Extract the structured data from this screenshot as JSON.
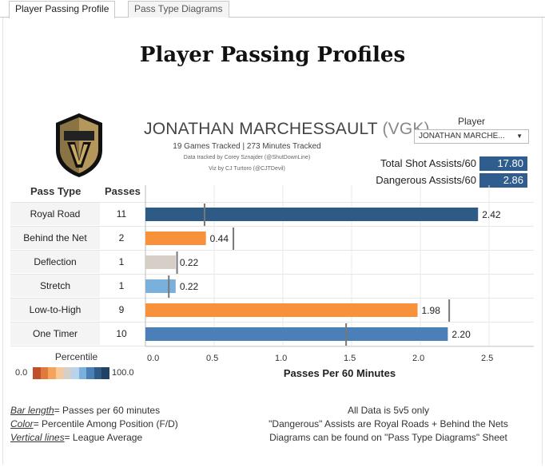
{
  "tabs": [
    {
      "label": "Player Passing Profile",
      "active": true
    },
    {
      "label": "Pass Type Diagrams",
      "active": false
    }
  ],
  "title": "Player Passing Profiles",
  "player": {
    "name": "JONATHAN MARCHESSAULT",
    "team": "(VGK)",
    "games_minutes": "19 Games Tracked | 273 Minutes Tracked",
    "data_credit": "Data tracked by Corey Sznajder (@ShutDownLine)",
    "viz_credit": "Viz by CJ Turtoro (@CJTDevil)"
  },
  "player_filter": {
    "label": "Player",
    "value": "JONATHAN MARCHE..."
  },
  "summary": {
    "total_label": "Total Shot Assists/60",
    "total_value": "17.80",
    "dangerous_label": "Dangerous Assists/60",
    "dangerous_value": "2.86"
  },
  "table_headers": {
    "pass_type": "Pass Type",
    "passes": "Passes"
  },
  "colors": {
    "dark_blue": "#2e5a86",
    "mid_blue": "#4a7fb8",
    "light_blue": "#7ab0dc",
    "orange": "#f7923a",
    "tan": "#d6cfc7",
    "avg_line": "#777777"
  },
  "chart_data": {
    "type": "bar",
    "orientation": "horizontal",
    "categories": [
      "Royal Road",
      "Behind the Net",
      "Deflection",
      "Stretch",
      "Low-to-High",
      "One Timer"
    ],
    "passes": [
      11,
      2,
      1,
      1,
      9,
      10
    ],
    "values": [
      2.42,
      0.44,
      0.22,
      0.22,
      1.98,
      2.2
    ],
    "value_labels": [
      "2.42",
      "0.44",
      "0.22",
      "0.22",
      "1.98",
      "2.20"
    ],
    "league_average": [
      0.43,
      0.64,
      0.23,
      0.17,
      2.21,
      1.46
    ],
    "bar_colors": [
      "#2e5a86",
      "#f7923a",
      "#d6cfc7",
      "#7ab0dc",
      "#f7923a",
      "#4a7fb8"
    ],
    "xlabel": "Passes Per 60 Minutes",
    "xlim": [
      0,
      2.8
    ],
    "xticks": [
      0.0,
      0.5,
      1.0,
      1.5,
      2.0,
      2.5
    ],
    "xtick_labels": [
      "0.0",
      "0.5",
      "1.0",
      "1.5",
      "2.0",
      "2.5"
    ],
    "grid": true
  },
  "percentile_legend": {
    "label": "Percentile",
    "min": "0.0",
    "max": "100.0",
    "colors": [
      "#c0502a",
      "#e07a3a",
      "#f5a25a",
      "#f7c99a",
      "#d6cfc7",
      "#b9d3ea",
      "#7ab0dc",
      "#4a7fb8",
      "#2e5a86",
      "#1f4266"
    ]
  },
  "notes_left": [
    {
      "term": "Bar length",
      "text": "= Passes per 60 minutes"
    },
    {
      "term": "Color",
      "text": "= Percentile Among Position (F/D)"
    },
    {
      "term": "Vertical lines",
      "text": "= League Average"
    }
  ],
  "notes_right": [
    "All Data is 5v5 only",
    "\"Dangerous\" Assists are Royal Roads + Behind the Nets",
    "Diagrams can be found on \"Pass Type Diagrams\" Sheet"
  ]
}
